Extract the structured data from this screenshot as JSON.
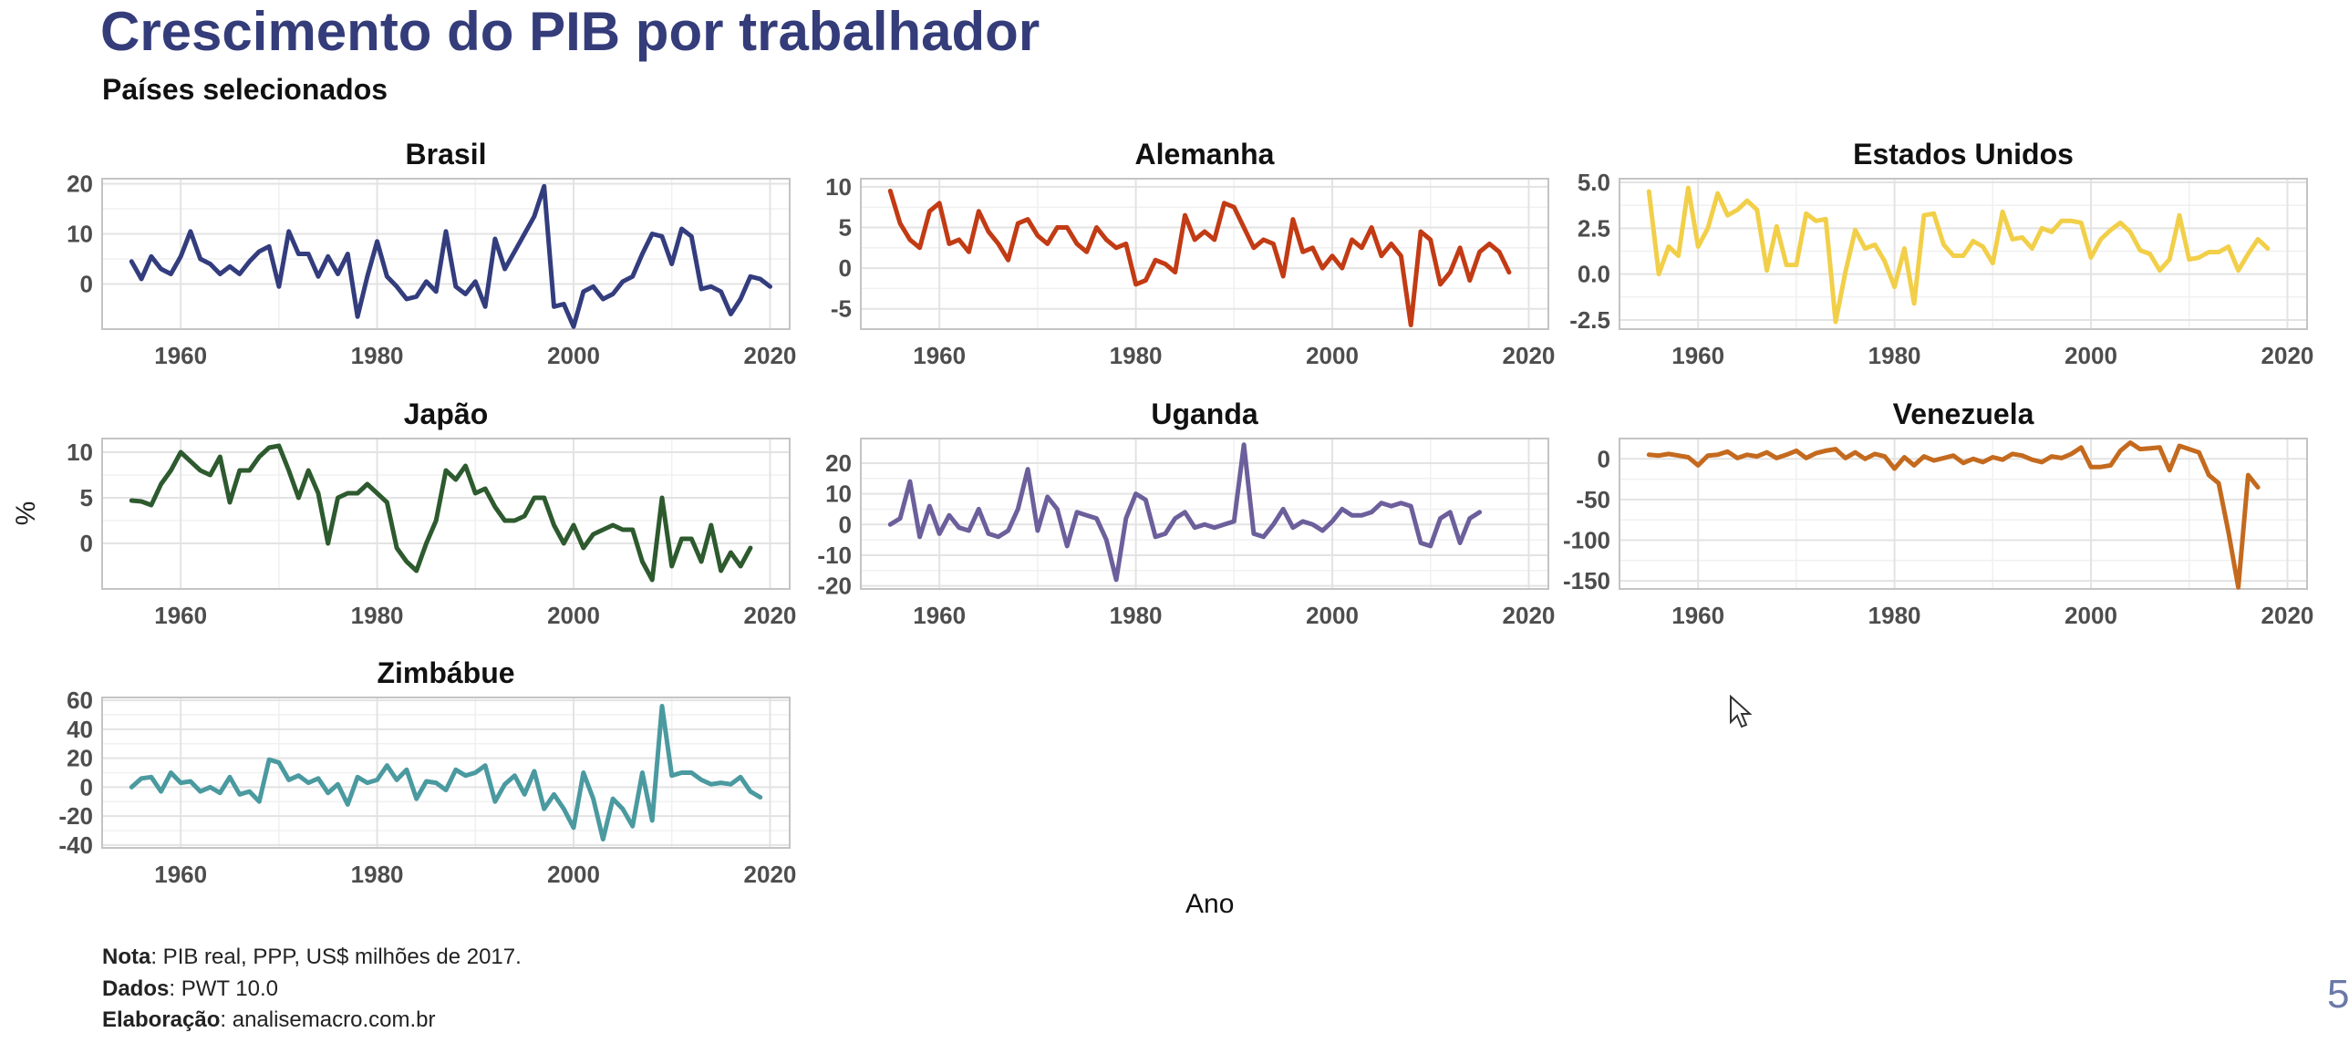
{
  "title": "Crescimento do PIB por trabalhador",
  "subtitle": "Países selecionados",
  "ylabel": "%",
  "xlabel": "Ano",
  "notes": {
    "nota_label": "Nota",
    "nota_text": ": PIB real, PPP, US$ milhões de 2017.",
    "dados_label": "Dados",
    "dados_text": ": PWT 10.0",
    "elab_label": "Elaboração",
    "elab_text": ": analisemacro.com.br"
  },
  "edge_glyph": "5",
  "icons": {
    "cursor": "mouse-pointer-icon"
  },
  "chart_data": [
    {
      "type": "line",
      "title": "Brasil",
      "color": "#333d7e",
      "ylim": [
        -9,
        21
      ],
      "yticks": [
        0,
        10,
        20
      ],
      "yticklabels": [
        "0",
        "10",
        "20"
      ],
      "xlim": [
        1952,
        2022
      ],
      "xticks": [
        1960,
        1980,
        2000,
        2020
      ],
      "x_start": 1955,
      "values": [
        4.5,
        1,
        5.5,
        3,
        2,
        5.5,
        10.5,
        5,
        4,
        2,
        3.5,
        2,
        4.5,
        6.5,
        7.5,
        -0.5,
        10.5,
        6,
        6,
        1.5,
        5.5,
        2,
        6,
        -6.5,
        1.5,
        8.5,
        1.5,
        -0.5,
        -3,
        -2.5,
        0.5,
        -1.5,
        10.5,
        -0.5,
        -2,
        0.5,
        -4.5,
        9,
        3,
        6.5,
        10,
        13.5,
        19.5,
        -4.5,
        -4,
        -8.5,
        -1.5,
        -0.5,
        -3,
        -2,
        0.5,
        1.5,
        6,
        10,
        9.5,
        4,
        11,
        9.5,
        -1,
        -0.5,
        -1.5,
        -6,
        -3,
        1.5,
        1,
        -0.5
      ]
    },
    {
      "type": "line",
      "title": "Alemanha",
      "color": "#c23b14",
      "ylim": [
        -7.5,
        11
      ],
      "yticks": [
        -5,
        0,
        5,
        10
      ],
      "yticklabels": [
        "-5",
        "0",
        "5",
        "10"
      ],
      "xlim": [
        1952,
        2022
      ],
      "xticks": [
        1960,
        1980,
        2000,
        2020
      ],
      "x_start": 1955,
      "values": [
        9.5,
        5.5,
        3.5,
        2.5,
        7,
        8,
        3,
        3.5,
        2,
        7,
        4.5,
        3,
        1,
        5.5,
        6,
        4,
        3,
        5,
        5,
        3,
        2,
        5,
        3.5,
        2.5,
        3,
        -2,
        -1.5,
        1,
        0.5,
        -0.5,
        6.5,
        3.5,
        4.5,
        3.5,
        8,
        7.5,
        5,
        2.5,
        3.5,
        3,
        -1,
        6,
        2,
        2.5,
        0,
        1.5,
        0,
        3.5,
        2.5,
        5,
        1.5,
        3,
        1.5,
        -7,
        4.5,
        3.5,
        -2,
        -0.5,
        2.5,
        -1.5,
        2,
        3,
        2,
        -0.5
      ]
    },
    {
      "type": "line",
      "title": "Estados Unidos",
      "color": "#f2cf49",
      "ylim": [
        -3,
        5.2
      ],
      "yticks": [
        -2.5,
        0,
        2.5,
        5
      ],
      "yticklabels": [
        "-2.5",
        "0.0",
        "2.5",
        "5.0"
      ],
      "xlim": [
        1952,
        2022
      ],
      "xticks": [
        1960,
        1980,
        2000,
        2020
      ],
      "x_start": 1955,
      "values": [
        4.5,
        0,
        1.5,
        1,
        4.7,
        1.5,
        2.5,
        4.4,
        3.2,
        3.5,
        4,
        3.5,
        0.2,
        2.6,
        0.5,
        0.5,
        3.3,
        2.9,
        3,
        -2.6,
        0.1,
        2.4,
        1.4,
        1.6,
        0.7,
        -0.7,
        1.4,
        -1.6,
        3.2,
        3.3,
        1.6,
        1,
        1,
        1.8,
        1.5,
        0.6,
        3.4,
        1.9,
        2,
        1.4,
        2.5,
        2.3,
        2.9,
        2.9,
        2.8,
        0.9,
        1.9,
        2.4,
        2.8,
        2.3,
        1.3,
        1.1,
        0.2,
        0.8,
        3.2,
        0.8,
        0.9,
        1.2,
        1.2,
        1.5,
        0.2,
        1.1,
        1.9,
        1.4
      ]
    },
    {
      "type": "line",
      "title": "Japão",
      "color": "#2d5a2e",
      "ylim": [
        -5,
        11.5
      ],
      "yticks": [
        0,
        5,
        10
      ],
      "yticklabels": [
        "0",
        "5",
        "10"
      ],
      "xlim": [
        1952,
        2022
      ],
      "xticks": [
        1960,
        1980,
        2000,
        2020
      ],
      "x_start": 1955,
      "values": [
        4.7,
        4.6,
        4.2,
        6.5,
        8,
        10,
        9,
        8,
        7.5,
        9.5,
        4.5,
        8,
        8,
        9.5,
        10.5,
        10.7,
        8,
        5,
        8,
        5.5,
        0,
        5,
        5.5,
        5.5,
        6.5,
        5.5,
        4.5,
        -0.5,
        -2,
        -3,
        0,
        2.5,
        8,
        7,
        8.5,
        5.5,
        6,
        4,
        2.5,
        2.5,
        3,
        5,
        5,
        2,
        0,
        2,
        -0.5,
        1,
        1.5,
        2,
        1.5,
        1.5,
        -2,
        -4,
        5,
        -2.5,
        0.5,
        0.5,
        -2,
        2,
        -3,
        -1,
        -2.5,
        -0.5
      ]
    },
    {
      "type": "line",
      "title": "Uganda",
      "color": "#6c5f9b",
      "ylim": [
        -21,
        28
      ],
      "yticks": [
        -20,
        -10,
        0,
        10,
        20
      ],
      "yticklabels": [
        "-20",
        "-10",
        "0",
        "10",
        "20"
      ],
      "xlim": [
        1952,
        2022
      ],
      "xticks": [
        1960,
        1980,
        2000,
        2020
      ],
      "x_start": 1955,
      "values": [
        0,
        2,
        14,
        -4,
        6,
        -3,
        3,
        -1,
        -2,
        5,
        -3,
        -4,
        -2,
        5,
        18,
        -2,
        9,
        5,
        -7,
        4,
        3,
        2,
        -5,
        -18,
        2,
        10,
        8,
        -4,
        -3,
        2,
        4,
        -1,
        0,
        -1,
        0,
        1,
        26,
        -3,
        -4,
        0,
        5,
        -1,
        1,
        0,
        -2,
        1,
        5,
        3,
        3,
        4,
        7,
        6,
        7,
        6,
        -6,
        -7,
        2,
        4,
        -6,
        2,
        4
      ]
    },
    {
      "type": "line",
      "title": "Venezuela",
      "color": "#c46a1e",
      "ylim": [
        -160,
        25
      ],
      "yticks": [
        -150,
        -100,
        -50,
        0
      ],
      "yticklabels": [
        "-150",
        "-100",
        "-50",
        "0"
      ],
      "xlim": [
        1952,
        2022
      ],
      "xticks": [
        1960,
        1980,
        2000,
        2020
      ],
      "x_start": 1955,
      "values": [
        5,
        4,
        6,
        4,
        2,
        -8,
        4,
        5,
        9,
        1,
        5,
        3,
        8,
        1,
        5,
        10,
        1,
        7,
        10,
        12,
        1,
        8,
        0,
        6,
        3,
        -12,
        2,
        -8,
        3,
        -2,
        1,
        4,
        -5,
        0,
        -4,
        2,
        -1,
        6,
        4,
        -1,
        -4,
        3,
        1,
        6,
        14,
        -10,
        -10,
        -8,
        10,
        20,
        12,
        13,
        14,
        -14,
        16,
        12,
        8,
        -20,
        -30,
        -90,
        -158,
        -20,
        -35
      ]
    },
    {
      "type": "line",
      "title": "Zimbábue",
      "color": "#4a9aa0",
      "ylim": [
        -42,
        62
      ],
      "yticks": [
        -40,
        -20,
        0,
        20,
        40,
        60
      ],
      "yticklabels": [
        "-40",
        "-20",
        "0",
        "20",
        "40",
        "60"
      ],
      "xlim": [
        1952,
        2022
      ],
      "xticks": [
        1960,
        1980,
        2000,
        2020
      ],
      "x_start": 1955,
      "values": [
        0,
        6,
        7,
        -3,
        10,
        3,
        4,
        -3,
        0,
        -4,
        7,
        -5,
        -3,
        -10,
        19,
        17,
        5,
        8,
        3,
        6,
        -4,
        2,
        -12,
        7,
        3,
        5,
        15,
        5,
        12,
        -8,
        4,
        3,
        -2,
        12,
        8,
        10,
        15,
        -10,
        2,
        8,
        -5,
        11,
        -15,
        -5,
        -15,
        -28,
        10,
        -8,
        -36,
        -8,
        -15,
        -27,
        10,
        -23,
        56,
        8,
        10,
        10,
        5,
        2,
        3,
        2,
        7,
        -3,
        -7
      ]
    }
  ]
}
